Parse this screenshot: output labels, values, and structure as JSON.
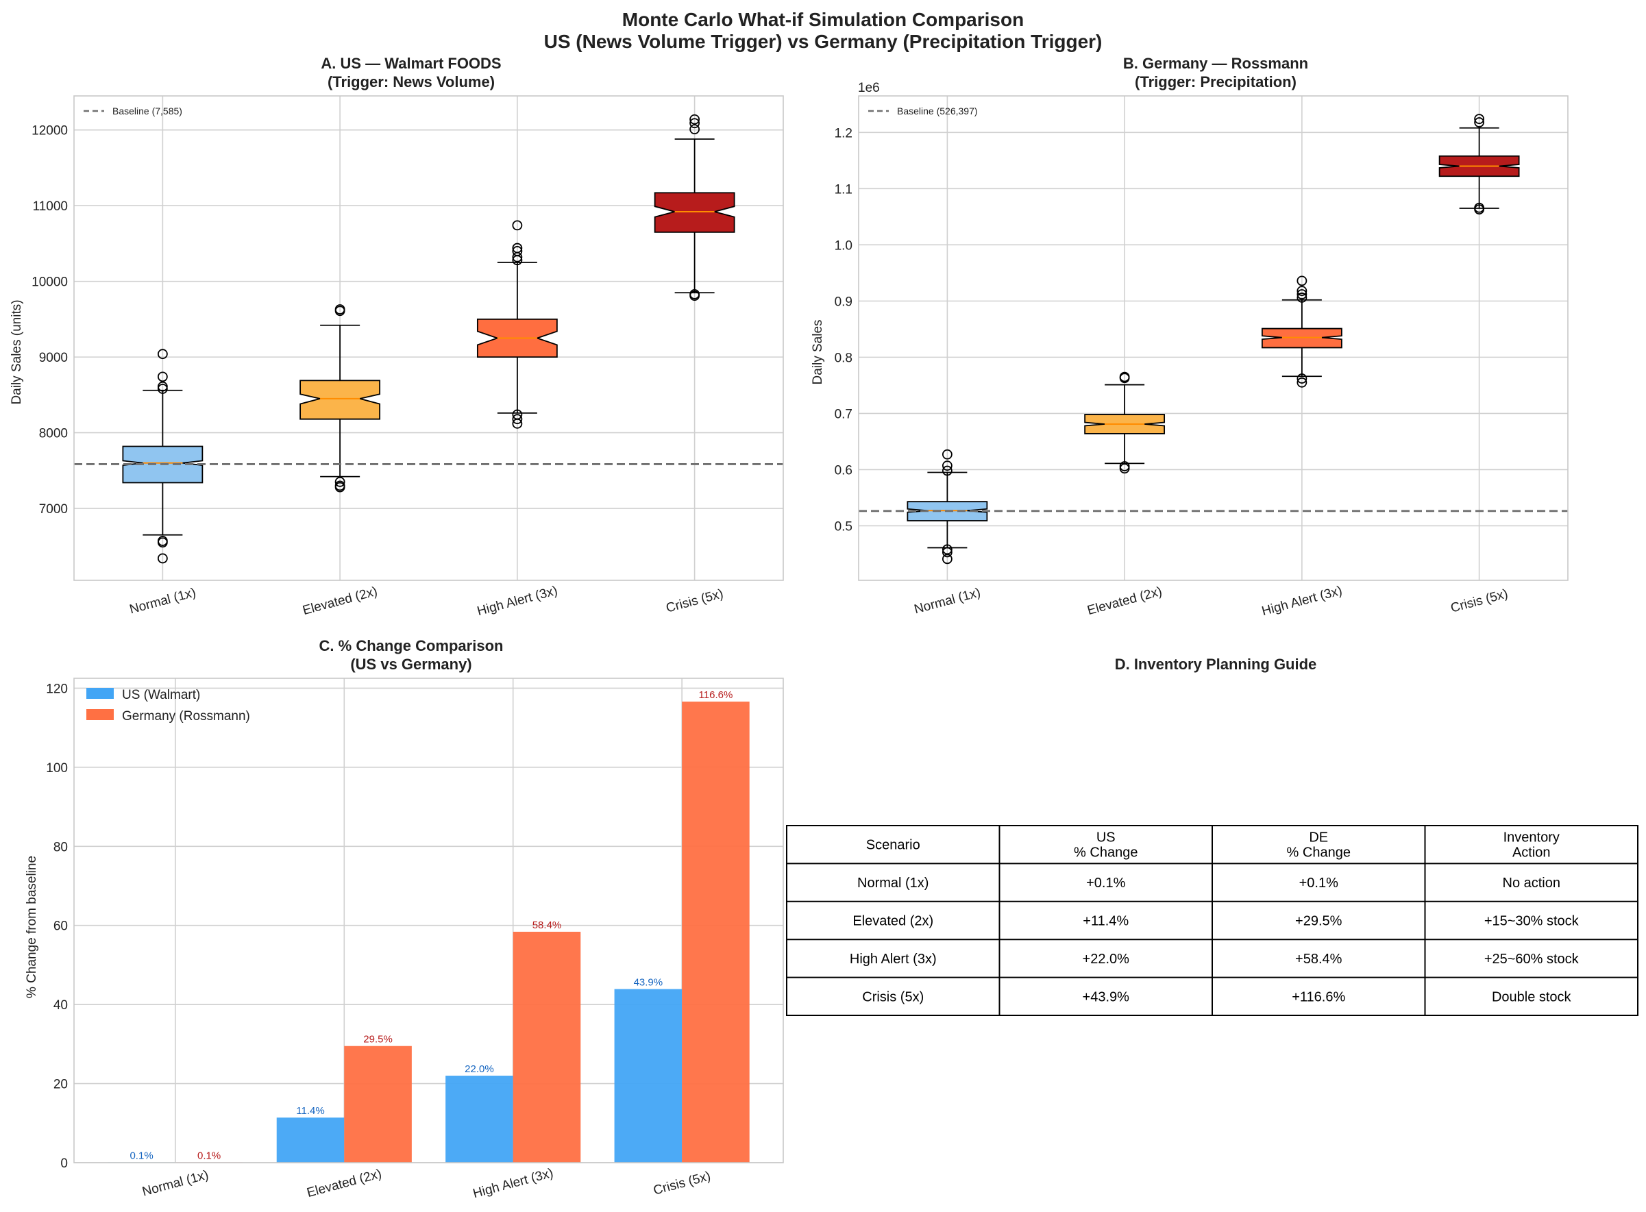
{
  "figure": {
    "suptitle_line1": "Monte Carlo What-if Simulation Comparison",
    "suptitle_line2": "US (News Volume Trigger) vs Germany (Precipitation Trigger)"
  },
  "colors": {
    "normal": "#90c5f0",
    "elevated": "#fbb44a",
    "high_alert": "#ff6e40",
    "crisis": "#b71c1c",
    "us_bar": "#42a5f5",
    "de_bar": "#ff7043",
    "us_label": "#1565c0",
    "de_label": "#b71c1c",
    "median": "#ff8c00",
    "baseline": "#707070"
  },
  "chart_data": [
    {
      "type": "box",
      "panel": "A",
      "title_line1": "A. US — Walmart FOODS",
      "title_line2": "(Trigger: News Volume)",
      "xlabel": "",
      "ylabel": "Daily Sales (units)",
      "ylim": [
        6050,
        12450
      ],
      "yticks": [
        7000,
        8000,
        9000,
        10000,
        11000,
        12000
      ],
      "ytick_labels": [
        "7000",
        "8000",
        "9000",
        "10000",
        "11000",
        "12000"
      ],
      "categories": [
        "Normal (1x)",
        "Elevated (2x)",
        "High Alert (3x)",
        "Crisis (5x)"
      ],
      "baseline": {
        "value": 7585,
        "label": "Baseline (7,585)"
      },
      "legend_position": "top-left",
      "boxes": [
        {
          "q1": 7340,
          "median": 7600,
          "q3": 7820,
          "whisker_low": 6650,
          "whisker_high": 8560,
          "notch_low": 7570,
          "notch_high": 7630,
          "outliers": [
            6340,
            6550,
            6570,
            8580,
            8610,
            8740,
            9040
          ]
        },
        {
          "q1": 8180,
          "median": 8450,
          "q3": 8690,
          "whisker_low": 7420,
          "whisker_high": 9420,
          "notch_low": 8380,
          "notch_high": 8510,
          "outliers": [
            7280,
            7300,
            7350,
            9610,
            9630
          ]
        },
        {
          "q1": 9000,
          "median": 9250,
          "q3": 9500,
          "whisker_low": 8260,
          "whisker_high": 10250,
          "notch_low": 9160,
          "notch_high": 9340,
          "outliers": [
            8120,
            8180,
            8240,
            10280,
            10320,
            10400,
            10440,
            10740
          ]
        },
        {
          "q1": 10650,
          "median": 10920,
          "q3": 11170,
          "whisker_low": 9850,
          "whisker_high": 11880,
          "notch_low": 10850,
          "notch_high": 10990,
          "outliers": [
            9810,
            9830,
            12010,
            12090,
            12140
          ]
        }
      ]
    },
    {
      "type": "box",
      "panel": "B",
      "title_line1": "B. Germany — Rossmann",
      "title_line2": "(Trigger: Precipitation)",
      "xlabel": "",
      "ylabel": "Daily Sales",
      "offset_text": "1e6",
      "ylim": [
        0.403,
        1.265
      ],
      "yticks": [
        0.5,
        0.6,
        0.7,
        0.8,
        0.9,
        1.0,
        1.1,
        1.2
      ],
      "ytick_labels": [
        "0.5",
        "0.6",
        "0.7",
        "0.8",
        "0.9",
        "1.0",
        "1.1",
        "1.2"
      ],
      "categories": [
        "Normal (1x)",
        "Elevated (2x)",
        "High Alert (3x)",
        "Crisis (5x)"
      ],
      "baseline": {
        "value": 0.526397,
        "label": "Baseline (526,397)"
      },
      "legend_position": "top-left",
      "boxes": [
        {
          "q1": 0.509,
          "median": 0.527,
          "q3": 0.543,
          "whisker_low": 0.461,
          "whisker_high": 0.595,
          "notch_low": 0.524,
          "notch_high": 0.53,
          "outliers": [
            0.441,
            0.453,
            0.458,
            0.598,
            0.607,
            0.627
          ]
        },
        {
          "q1": 0.664,
          "median": 0.681,
          "q3": 0.698,
          "whisker_low": 0.611,
          "whisker_high": 0.751,
          "notch_low": 0.678,
          "notch_high": 0.684,
          "outliers": [
            0.602,
            0.606,
            0.763,
            0.765
          ]
        },
        {
          "q1": 0.817,
          "median": 0.835,
          "q3": 0.851,
          "whisker_low": 0.766,
          "whisker_high": 0.902,
          "notch_low": 0.832,
          "notch_high": 0.838,
          "outliers": [
            0.755,
            0.762,
            0.906,
            0.912,
            0.918,
            0.936
          ]
        },
        {
          "q1": 1.122,
          "median": 1.14,
          "q3": 1.158,
          "whisker_low": 1.065,
          "whisker_high": 1.208,
          "notch_low": 1.137,
          "notch_high": 1.143,
          "outliers": [
            1.063,
            1.066,
            1.218,
            1.224
          ]
        }
      ]
    },
    {
      "type": "bar",
      "panel": "C",
      "title_line1": "C. % Change Comparison",
      "title_line2": "(US vs Germany)",
      "xlabel": "",
      "ylabel": "% Change from baseline",
      "ylim": [
        0,
        122.5
      ],
      "yticks": [
        0,
        20,
        40,
        60,
        80,
        100,
        120
      ],
      "ytick_labels": [
        "0",
        "20",
        "40",
        "60",
        "80",
        "100",
        "120"
      ],
      "categories": [
        "Normal (1x)",
        "Elevated (2x)",
        "High Alert (3x)",
        "Crisis (5x)"
      ],
      "legend_position": "top-left",
      "series": [
        {
          "name": "US (Walmart)",
          "values": [
            0.1,
            11.4,
            22.0,
            43.9
          ],
          "labels": [
            "0.1%",
            "11.4%",
            "22.0%",
            "43.9%"
          ]
        },
        {
          "name": "Germany (Rossmann)",
          "values": [
            0.1,
            29.5,
            58.4,
            116.6
          ],
          "labels": [
            "0.1%",
            "29.5%",
            "58.4%",
            "116.6%"
          ]
        }
      ]
    },
    {
      "type": "table",
      "panel": "D",
      "title": "D. Inventory Planning Guide",
      "header": [
        [
          "Scenario"
        ],
        [
          "US",
          "% Change"
        ],
        [
          "DE",
          "% Change"
        ],
        [
          "Inventory",
          "Action"
        ]
      ],
      "rows": [
        [
          "Normal (1x)",
          "+0.1%",
          "+0.1%",
          "No action"
        ],
        [
          "Elevated (2x)",
          "+11.4%",
          "+29.5%",
          "+15~30% stock"
        ],
        [
          "High Alert (3x)",
          "+22.0%",
          "+58.4%",
          "+25~60% stock"
        ],
        [
          "Crisis (5x)",
          "+43.9%",
          "+116.6%",
          "Double stock"
        ]
      ]
    }
  ]
}
